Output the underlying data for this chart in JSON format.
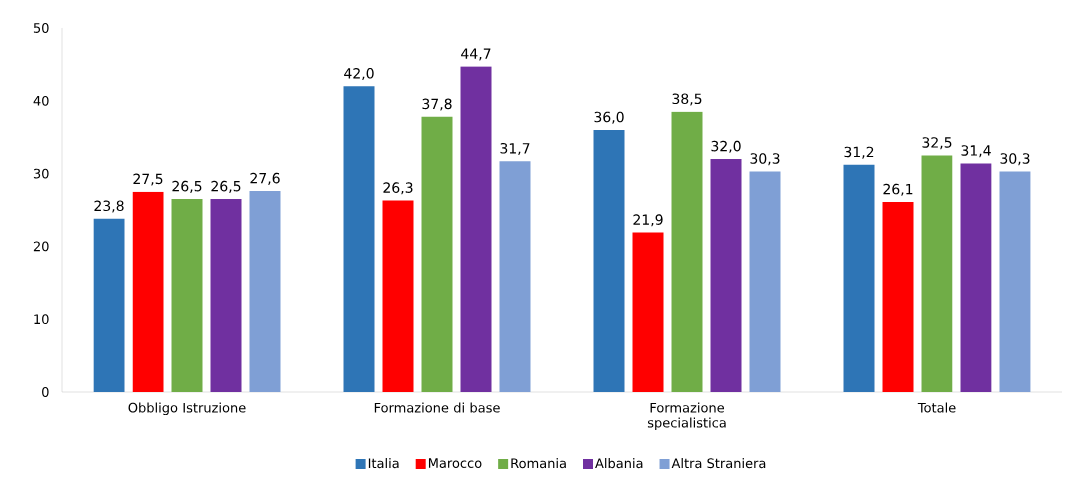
{
  "chart_data": {
    "type": "bar",
    "categories": [
      "Obbligo Istruzione",
      "Formazione di base",
      "Formazione specialistica",
      "Totale"
    ],
    "series": [
      {
        "name": "Italia",
        "color": "#2e75b6",
        "values": [
          23.8,
          42.0,
          36.0,
          31.2
        ],
        "value_labels": [
          "23,8",
          "42,0",
          "36,0",
          "31,2"
        ]
      },
      {
        "name": "Marocco",
        "color": "#ff0000",
        "values": [
          27.5,
          26.3,
          21.9,
          26.1
        ],
        "value_labels": [
          "27,5",
          "26,3",
          "21,9",
          "26,1"
        ]
      },
      {
        "name": "Romania",
        "color": "#70ad47",
        "values": [
          26.5,
          37.8,
          38.5,
          32.5
        ],
        "value_labels": [
          "26,5",
          "37,8",
          "38,5",
          "32,5"
        ]
      },
      {
        "name": "Albania",
        "color": "#7030a0",
        "values": [
          26.5,
          44.7,
          32.0,
          31.4
        ],
        "value_labels": [
          "26,5",
          "44,7",
          "32,0",
          "31,4"
        ]
      },
      {
        "name": "Altra Straniera",
        "color": "#7f9fd5",
        "values": [
          27.6,
          31.7,
          30.3,
          30.3
        ],
        "value_labels": [
          "27,6",
          "31,7",
          "30,3",
          "30,3"
        ]
      }
    ],
    "ylim": [
      0,
      50
    ],
    "yticks": [
      0,
      10,
      20,
      30,
      40,
      50
    ],
    "legend": "bottom"
  }
}
